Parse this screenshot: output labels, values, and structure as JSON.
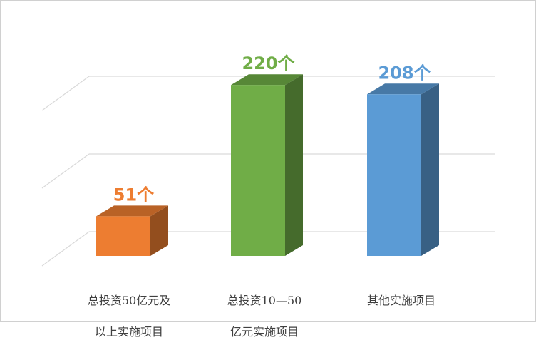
{
  "chart_data": {
    "type": "bar",
    "title": "",
    "xlabel": "",
    "ylabel": "",
    "categories": [
      {
        "line1": "总投资50亿元及",
        "line2": "以上实施项目"
      },
      {
        "line1": "总投资10—50",
        "line2": "亿元实施项目"
      },
      {
        "line1": "其他实施项目",
        "line2": ""
      }
    ],
    "values": [
      51,
      220,
      208
    ],
    "data_labels": [
      "51个",
      "220个",
      "208个"
    ],
    "colors": [
      "#ED7D31",
      "#70AD47",
      "#5B9BD5"
    ],
    "ylim": [
      0,
      250
    ],
    "grid": true,
    "style": "3d-column"
  }
}
